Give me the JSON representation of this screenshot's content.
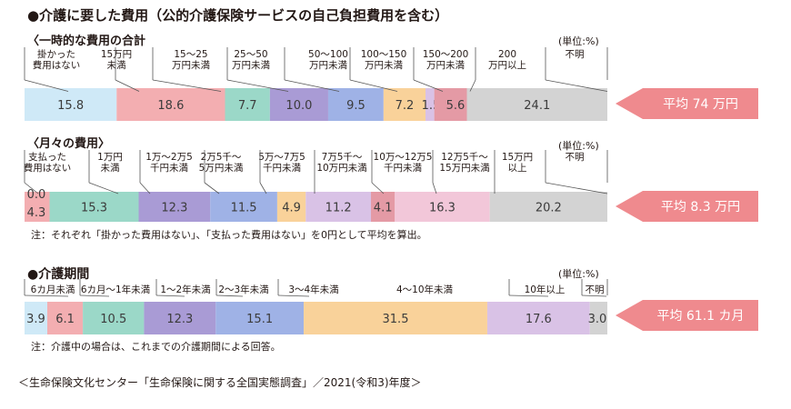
{
  "title": "●介護に要した費用（公的介護保険サービスの自己負担費用を含む）",
  "source": "＜生命保険文化センター「生命保険に関する全国実態調査」／2021(令和3)年度＞",
  "colors": {
    "light_blue": "#cfe9f7",
    "pink": "#f3aeb1",
    "teal": "#9bd8c8",
    "purple": "#a99bd5",
    "blue": "#9fb2e6",
    "orange": "#f9d29a",
    "lavender": "#d9c2e6",
    "rose": "#f2c7d9",
    "dark_pink": "#e49aa5",
    "gray": "#d3d3d3",
    "average_box": "#ef8a8e"
  },
  "chart_data": [
    {
      "type": "bar",
      "orientation": "horizontal-stacked",
      "title": "〈一時的な費用の合計",
      "unit_label": "(単位:%)",
      "categories": [
        "掛かった費用はない",
        "15万円未満",
        "15〜25万円未満",
        "25〜50万円未満",
        "50〜100万円未満",
        "100〜150万円未満",
        "",
        "150〜200万円未満",
        "200万円以上",
        "不明"
      ],
      "values": [
        15.8,
        18.6,
        7.7,
        10.0,
        9.5,
        7.2,
        1.5,
        5.6,
        24.1,
        0
      ],
      "value_labels": [
        "15.8",
        "18.6",
        "7.7",
        "10.0",
        "9.5",
        "7.2",
        "1.5",
        "5.6",
        "24.1",
        ""
      ],
      "colors": [
        "#cfe9f7",
        "#f3aeb1",
        "#9bd8c8",
        "#a99bd5",
        "#9fb2e6",
        "#f9d29a",
        "#d9c2e6",
        "#e49aa5",
        "#d3d3d3",
        "#d3d3d3"
      ],
      "average": "平均 74 万円"
    },
    {
      "type": "bar",
      "orientation": "horizontal-stacked",
      "title": "〈月々の費用〉",
      "unit_label": "(単位:%)",
      "categories": [
        "支払った費用はない",
        "1万円未満",
        "1万〜2万5千円未満",
        "2万5千〜5万円未満",
        "5万〜7万5千円未満",
        "7万5千〜10万円未満",
        "10万〜12万5千円未満",
        "12万5千〜15万円未満",
        "15万円以上",
        "不明"
      ],
      "values": [
        4.3,
        15.3,
        12.3,
        11.5,
        4.9,
        11.2,
        4.1,
        16.3,
        20.2,
        0
      ],
      "value_labels": [
        "4.3",
        "15.3",
        "12.3",
        "11.5",
        "4.9",
        "11.2",
        "4.1",
        "16.3",
        "20.2",
        "0.0"
      ],
      "colors": [
        "#f3aeb1",
        "#9bd8c8",
        "#a99bd5",
        "#9fb2e6",
        "#f9d29a",
        "#d9c2e6",
        "#e49aa5",
        "#f2c7d9",
        "#d3d3d3",
        "#d3d3d3"
      ],
      "average": "平均 8.3 万円",
      "note": "注：それぞれ「掛かった費用はない」、「支払った費用はない」を0円として平均を算出。"
    },
    {
      "type": "bar",
      "orientation": "horizontal-stacked",
      "title": "●介護期間",
      "unit_label": "(単位:%)",
      "categories": [
        "",
        "6カ月未満",
        "6カ月〜1年未満",
        "1〜2年未満",
        "2〜3年未満",
        "3〜4年未満",
        "4〜10年未満",
        "10年以上",
        "不明"
      ],
      "values": [
        3.9,
        6.1,
        10.5,
        12.3,
        15.1,
        31.5,
        17.6,
        3.0,
        0
      ],
      "value_labels": [
        "3.9",
        "6.1",
        "10.5",
        "12.3",
        "15.1",
        "31.5",
        "17.6",
        "3.0",
        ""
      ],
      "colors": [
        "#cfe9f7",
        "#f3aeb1",
        "#9bd8c8",
        "#a99bd5",
        "#9fb2e6",
        "#f9d29a",
        "#d9c2e6",
        "#d3d3d3",
        "#d3d3d3"
      ],
      "average": "平均 61.1 カ月",
      "note": "注：介護中の場合は、これまでの介護期間による回答。"
    }
  ]
}
